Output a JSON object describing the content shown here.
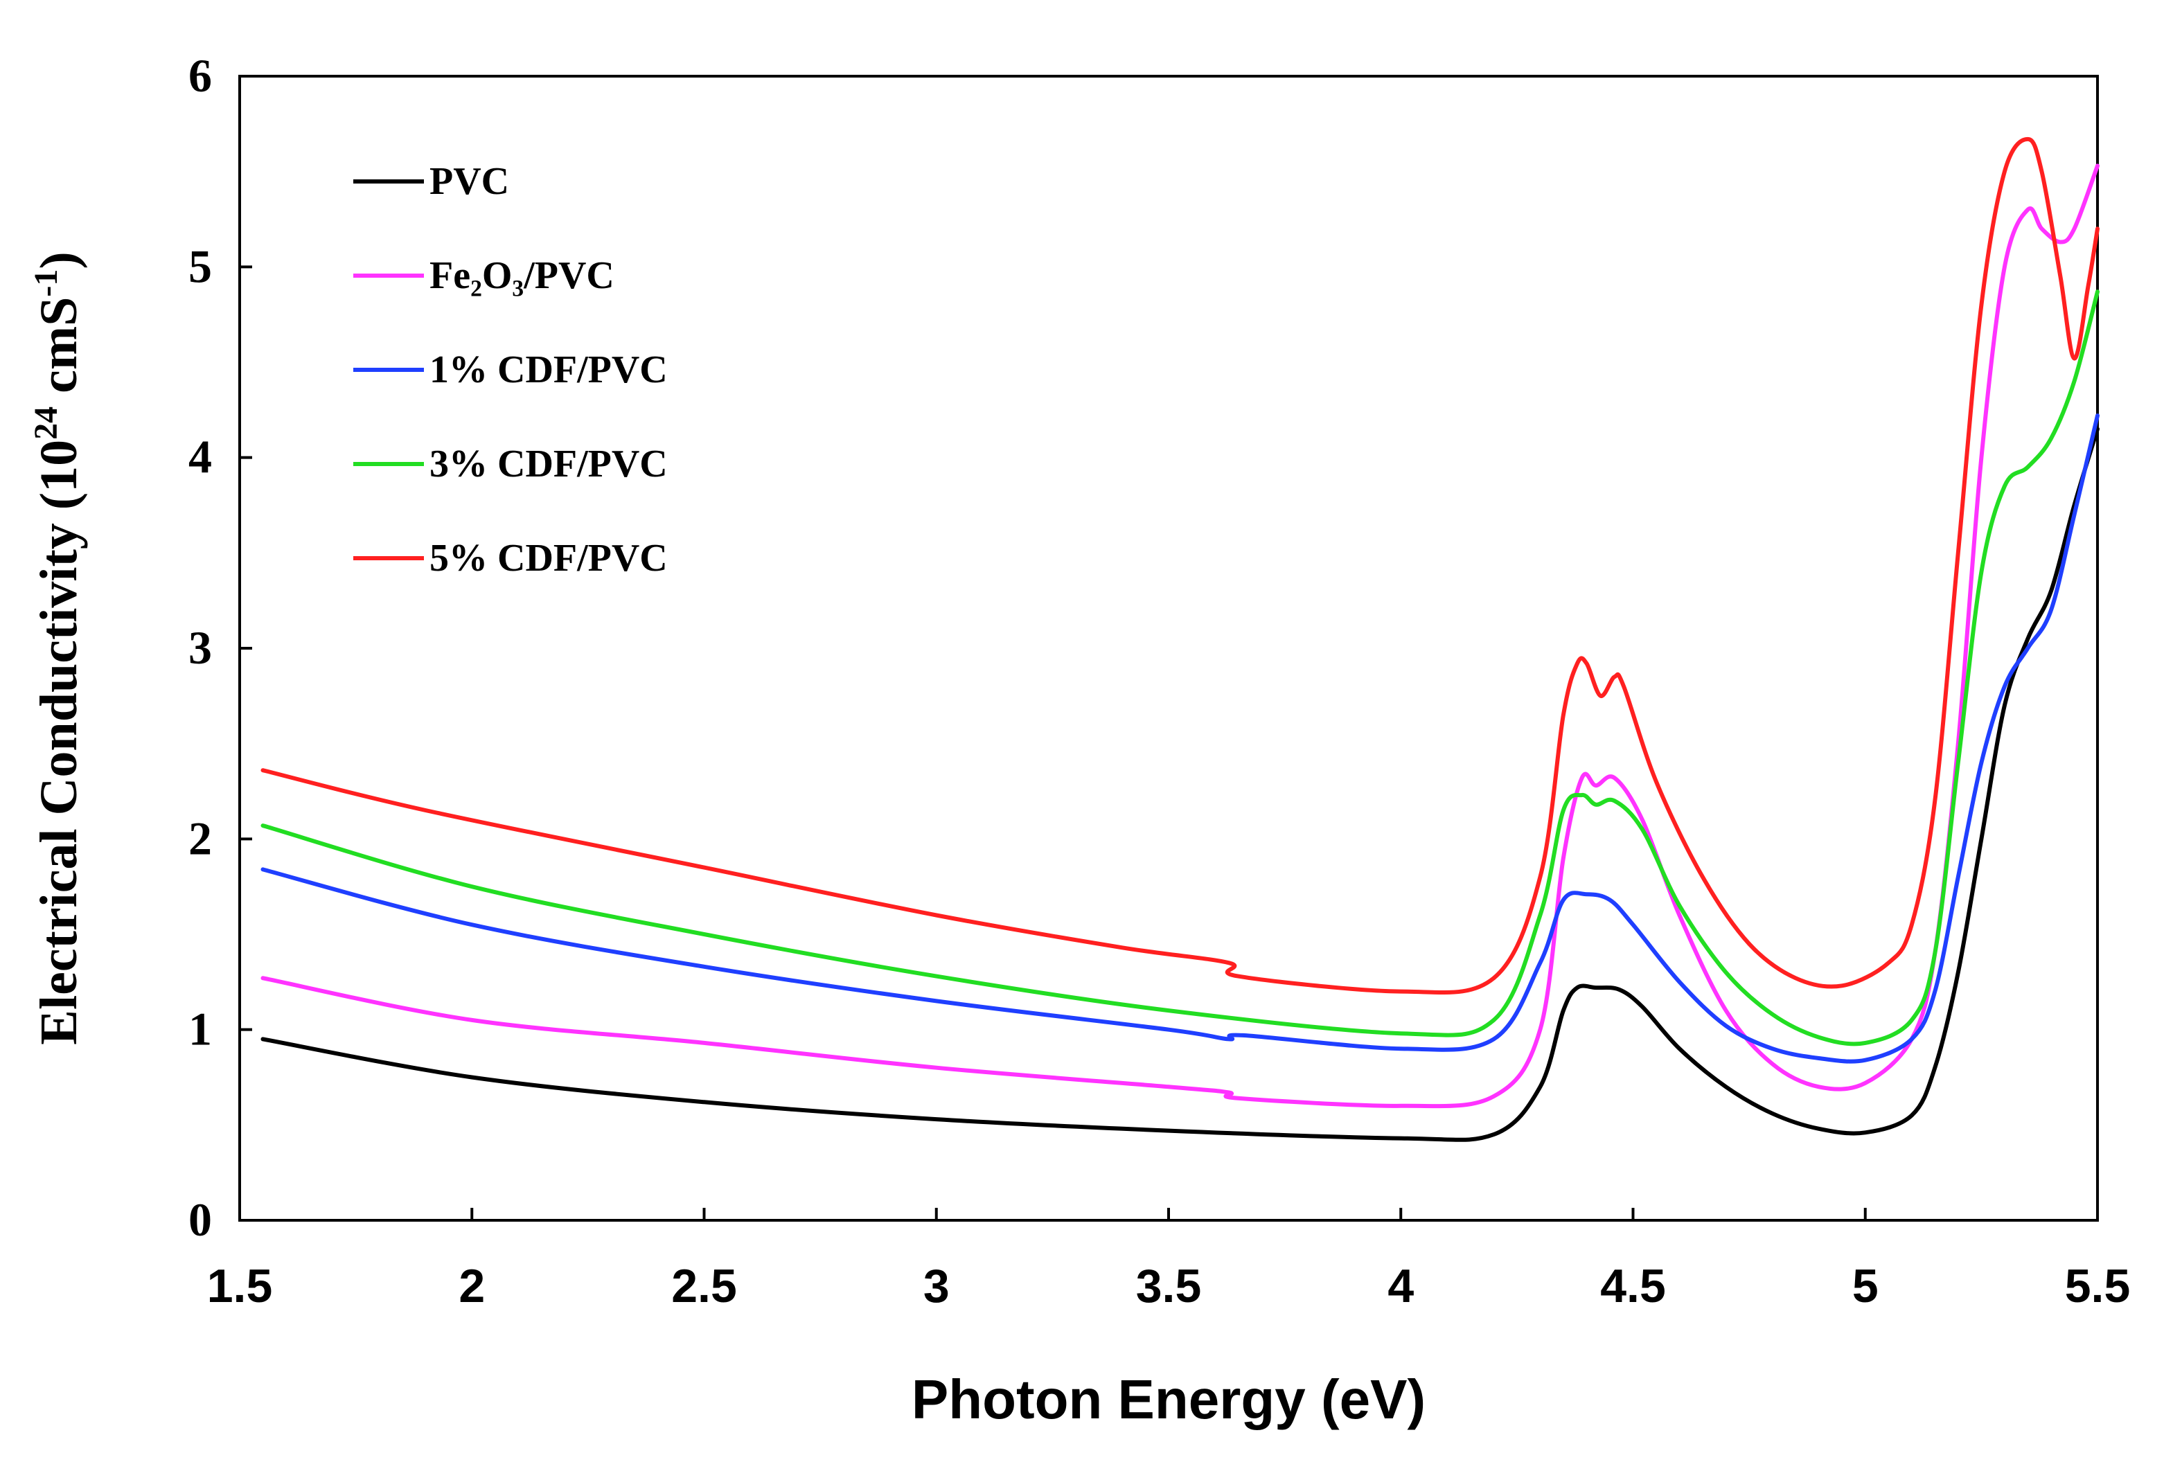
{
  "chart_data": {
    "type": "line",
    "title": "",
    "xlabel": "Photon  Energy  (eV)",
    "ylabel": "Electrical Conductivity (10²⁴ cmS⁻¹)",
    "ylabel_main": "Electrical Conductivity (10",
    "ylabel_sup1": "24",
    "ylabel_mid": " cmS",
    "ylabel_sup2": "-1",
    "ylabel_end": ")",
    "xlim": [
      1.5,
      5.5
    ],
    "ylim": [
      0,
      6
    ],
    "xticks": [
      "1.5",
      "2",
      "2.5",
      "3",
      "3.5",
      "4",
      "4.5",
      "5",
      "5.5"
    ],
    "yticks": [
      "0",
      "1",
      "2",
      "3",
      "4",
      "5",
      "6"
    ],
    "grid": false,
    "legend_position": "top-left",
    "series": [
      {
        "name": "PVC",
        "color": "#000000",
        "x": [
          1.55,
          2.0,
          2.5,
          3.0,
          3.5,
          4.0,
          4.2,
          4.3,
          4.35,
          4.38,
          4.42,
          4.47,
          4.52,
          4.6,
          4.7,
          4.8,
          4.9,
          5.0,
          5.1,
          5.15,
          5.2,
          5.25,
          5.3,
          5.35,
          5.4,
          5.45,
          5.5
        ],
        "y": [
          0.95,
          0.75,
          0.62,
          0.53,
          0.47,
          0.43,
          0.45,
          0.7,
          1.1,
          1.22,
          1.22,
          1.21,
          1.12,
          0.9,
          0.7,
          0.56,
          0.48,
          0.46,
          0.55,
          0.8,
          1.3,
          2.0,
          2.7,
          3.05,
          3.3,
          3.75,
          4.15
        ]
      },
      {
        "name": "Fe₂O₃/PVC",
        "color": "#ff33ff",
        "x": [
          1.55,
          2.0,
          2.5,
          3.0,
          3.5,
          3.63,
          3.65,
          4.0,
          4.2,
          4.3,
          4.35,
          4.39,
          4.42,
          4.46,
          4.52,
          4.6,
          4.7,
          4.8,
          4.9,
          5.0,
          5.1,
          5.15,
          5.2,
          5.25,
          5.3,
          5.35,
          5.38,
          5.42,
          5.45,
          5.5
        ],
        "y": [
          1.27,
          1.05,
          0.93,
          0.8,
          0.7,
          0.67,
          0.64,
          0.6,
          0.65,
          1.0,
          1.9,
          2.32,
          2.28,
          2.32,
          2.1,
          1.6,
          1.1,
          0.82,
          0.7,
          0.72,
          0.95,
          1.4,
          2.5,
          4.0,
          5.0,
          5.3,
          5.2,
          5.13,
          5.2,
          5.53
        ]
      },
      {
        "name": "1% CDF/PVC",
        "color": "#1f3fff",
        "x": [
          1.55,
          2.0,
          2.5,
          3.0,
          3.5,
          3.63,
          3.66,
          4.0,
          4.2,
          4.3,
          4.35,
          4.4,
          4.45,
          4.5,
          4.6,
          4.7,
          4.8,
          4.9,
          5.0,
          5.1,
          5.15,
          5.2,
          5.25,
          5.3,
          5.35,
          5.4,
          5.45,
          5.5
        ],
        "y": [
          1.84,
          1.55,
          1.33,
          1.15,
          1.0,
          0.95,
          0.97,
          0.9,
          0.95,
          1.35,
          1.68,
          1.71,
          1.68,
          1.55,
          1.25,
          1.02,
          0.9,
          0.85,
          0.84,
          0.95,
          1.2,
          1.8,
          2.4,
          2.8,
          3.0,
          3.2,
          3.7,
          4.22
        ]
      },
      {
        "name": "3% CDF/PVC",
        "color": "#22dd22",
        "x": [
          1.55,
          2.0,
          2.5,
          3.0,
          3.5,
          4.0,
          4.2,
          4.3,
          4.35,
          4.39,
          4.42,
          4.46,
          4.52,
          4.6,
          4.7,
          4.8,
          4.9,
          5.0,
          5.1,
          5.15,
          5.2,
          5.25,
          5.3,
          5.35,
          5.4,
          5.45,
          5.5
        ],
        "y": [
          2.07,
          1.75,
          1.5,
          1.28,
          1.1,
          0.98,
          1.05,
          1.6,
          2.15,
          2.23,
          2.18,
          2.2,
          2.05,
          1.65,
          1.3,
          1.08,
          0.96,
          0.93,
          1.05,
          1.4,
          2.4,
          3.4,
          3.85,
          3.95,
          4.1,
          4.4,
          4.87
        ]
      },
      {
        "name": "5% CDF/PVC",
        "color": "#ff2020",
        "x": [
          1.55,
          1.9,
          2.5,
          3.0,
          3.4,
          3.63,
          3.65,
          4.0,
          4.2,
          4.3,
          4.35,
          4.38,
          4.4,
          4.43,
          4.46,
          4.48,
          4.55,
          4.65,
          4.75,
          4.85,
          4.95,
          5.05,
          5.1,
          5.15,
          5.2,
          5.25,
          5.3,
          5.35,
          5.38,
          5.42,
          5.45,
          5.48,
          5.5
        ],
        "y": [
          2.36,
          2.15,
          1.85,
          1.6,
          1.43,
          1.35,
          1.28,
          1.2,
          1.27,
          1.8,
          2.65,
          2.92,
          2.92,
          2.75,
          2.85,
          2.8,
          2.3,
          1.8,
          1.45,
          1.27,
          1.23,
          1.35,
          1.55,
          2.2,
          3.5,
          4.8,
          5.5,
          5.67,
          5.5,
          4.95,
          4.52,
          4.9,
          5.2
        ]
      }
    ]
  }
}
